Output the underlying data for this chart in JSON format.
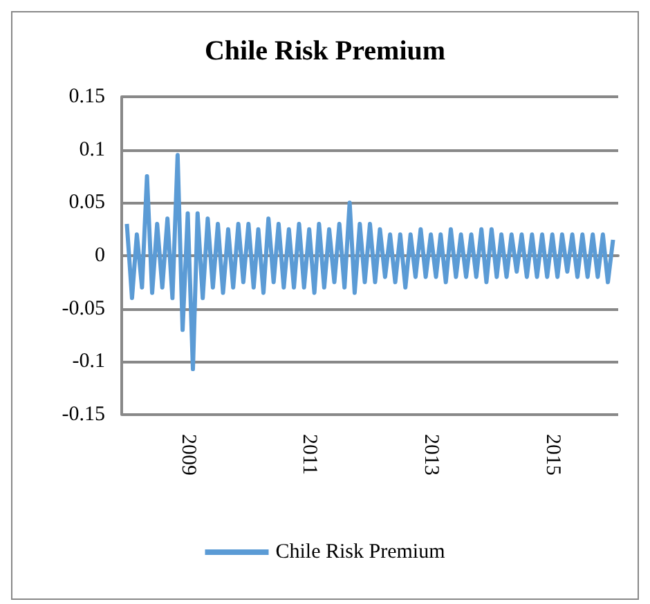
{
  "chart_data": {
    "type": "line",
    "title": "Chile Risk Premium",
    "x": [
      "2008-01",
      "2008-02",
      "2008-03",
      "2008-04",
      "2008-05",
      "2008-06",
      "2008-07",
      "2008-08",
      "2008-09",
      "2008-10",
      "2008-11",
      "2008-12",
      "2009-01",
      "2009-02",
      "2009-03",
      "2009-04",
      "2009-05",
      "2009-06",
      "2009-07",
      "2009-08",
      "2009-09",
      "2009-10",
      "2009-11",
      "2009-12",
      "2010-01",
      "2010-02",
      "2010-03",
      "2010-04",
      "2010-05",
      "2010-06",
      "2010-07",
      "2010-08",
      "2010-09",
      "2010-10",
      "2010-11",
      "2010-12",
      "2011-01",
      "2011-02",
      "2011-03",
      "2011-04",
      "2011-05",
      "2011-06",
      "2011-07",
      "2011-08",
      "2011-09",
      "2011-10",
      "2011-11",
      "2011-12",
      "2012-01",
      "2012-02",
      "2012-03",
      "2012-04",
      "2012-05",
      "2012-06",
      "2012-07",
      "2012-08",
      "2012-09",
      "2012-10",
      "2012-11",
      "2012-12",
      "2013-01",
      "2013-02",
      "2013-03",
      "2013-04",
      "2013-05",
      "2013-06",
      "2013-07",
      "2013-08",
      "2013-09",
      "2013-10",
      "2013-11",
      "2013-12",
      "2014-01",
      "2014-02",
      "2014-03",
      "2014-04",
      "2014-05",
      "2014-06",
      "2014-07",
      "2014-08",
      "2014-09",
      "2014-10",
      "2014-11",
      "2014-12",
      "2015-01",
      "2015-02",
      "2015-03",
      "2015-04",
      "2015-05",
      "2015-06",
      "2015-07",
      "2015-08",
      "2015-09",
      "2015-10",
      "2015-11",
      "2015-12",
      "2016-01"
    ],
    "series": [
      {
        "name": "Chile Risk Premium",
        "color": "#5b9bd5",
        "values": [
          0.03,
          -0.04,
          0.02,
          -0.03,
          0.075,
          -0.035,
          0.03,
          -0.03,
          0.035,
          -0.04,
          0.095,
          -0.07,
          0.04,
          -0.107,
          0.04,
          -0.04,
          0.035,
          -0.03,
          0.03,
          -0.035,
          0.025,
          -0.03,
          0.03,
          -0.025,
          0.03,
          -0.03,
          0.025,
          -0.035,
          0.035,
          -0.025,
          0.03,
          -0.03,
          0.025,
          -0.03,
          0.03,
          -0.03,
          0.025,
          -0.035,
          0.03,
          -0.03,
          0.025,
          -0.025,
          0.03,
          -0.03,
          0.05,
          -0.035,
          0.03,
          -0.025,
          0.03,
          -0.025,
          0.025,
          -0.02,
          0.02,
          -0.025,
          0.02,
          -0.03,
          0.02,
          -0.02,
          0.025,
          -0.02,
          0.02,
          -0.02,
          0.02,
          -0.025,
          0.025,
          -0.02,
          0.02,
          -0.02,
          0.02,
          -0.02,
          0.025,
          -0.025,
          0.025,
          -0.02,
          0.02,
          -0.02,
          0.02,
          -0.015,
          0.02,
          -0.02,
          0.02,
          -0.02,
          0.02,
          -0.02,
          0.02,
          -0.02,
          0.02,
          -0.015,
          0.02,
          -0.02,
          0.02,
          -0.02,
          0.02,
          -0.02,
          0.02,
          -0.025,
          0.015
        ]
      }
    ],
    "xlim": [
      "2007-12",
      "2016-02"
    ],
    "xticks": [
      "2009",
      "2011",
      "2013",
      "2015"
    ],
    "ylim": [
      -0.15,
      0.15
    ],
    "yticks": [
      -0.15,
      -0.1,
      -0.05,
      0,
      0.05,
      0.1,
      0.15
    ],
    "grid": "y",
    "legend": "bottom",
    "marker": "none",
    "line_style": "solid"
  }
}
